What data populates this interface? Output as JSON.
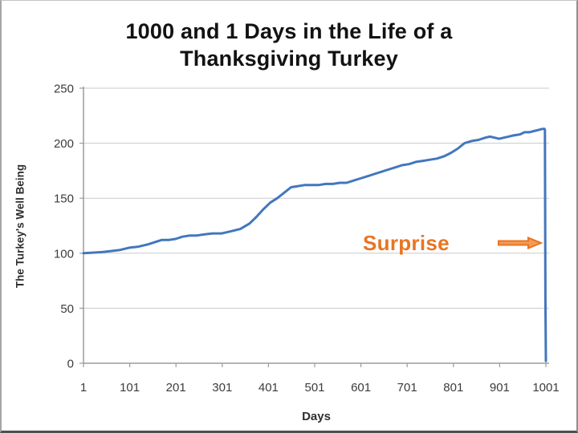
{
  "title": {
    "text": "1000 and 1 Days in the Life of a Thanksgiving Turkey",
    "lines": [
      "1000 and 1 Days in the Life of a",
      "Thanksgiving Turkey"
    ]
  },
  "chart_data": {
    "type": "line",
    "title": "1000 and 1 Days in the Life of a Thanksgiving Turkey",
    "xlabel": "Days",
    "ylabel": "The Turkey's Well Being",
    "xlim": [
      1,
      1001
    ],
    "ylim": [
      0,
      250
    ],
    "x_ticks": [
      1,
      101,
      201,
      301,
      401,
      501,
      601,
      701,
      801,
      901,
      1001
    ],
    "y_ticks": [
      0,
      50,
      100,
      150,
      200,
      250
    ],
    "grid": "horizontal",
    "legend": "none",
    "series": [
      {
        "name": "The Turkey's Well Being",
        "color": "#4277BD",
        "points": [
          [
            1,
            100
          ],
          [
            20,
            100.5
          ],
          [
            40,
            101
          ],
          [
            60,
            102
          ],
          [
            80,
            103
          ],
          [
            100,
            105
          ],
          [
            120,
            106
          ],
          [
            140,
            108
          ],
          [
            155,
            110
          ],
          [
            170,
            112
          ],
          [
            185,
            112
          ],
          [
            200,
            113
          ],
          [
            215,
            115
          ],
          [
            230,
            116
          ],
          [
            245,
            116
          ],
          [
            260,
            117
          ],
          [
            280,
            118
          ],
          [
            300,
            118
          ],
          [
            320,
            120
          ],
          [
            340,
            122
          ],
          [
            360,
            127
          ],
          [
            375,
            133
          ],
          [
            390,
            140
          ],
          [
            405,
            146
          ],
          [
            420,
            150
          ],
          [
            435,
            155
          ],
          [
            450,
            160
          ],
          [
            465,
            161
          ],
          [
            480,
            162
          ],
          [
            495,
            162
          ],
          [
            510,
            162
          ],
          [
            525,
            163
          ],
          [
            540,
            163
          ],
          [
            555,
            164
          ],
          [
            570,
            164
          ],
          [
            585,
            166
          ],
          [
            600,
            168
          ],
          [
            615,
            170
          ],
          [
            630,
            172
          ],
          [
            645,
            174
          ],
          [
            660,
            176
          ],
          [
            675,
            178
          ],
          [
            690,
            180
          ],
          [
            705,
            181
          ],
          [
            720,
            183
          ],
          [
            735,
            184
          ],
          [
            750,
            185
          ],
          [
            765,
            186
          ],
          [
            780,
            188
          ],
          [
            795,
            191
          ],
          [
            810,
            195
          ],
          [
            825,
            200
          ],
          [
            840,
            202
          ],
          [
            855,
            203
          ],
          [
            870,
            205
          ],
          [
            880,
            206
          ],
          [
            890,
            205
          ],
          [
            900,
            204
          ],
          [
            910,
            205
          ],
          [
            920,
            206
          ],
          [
            930,
            207
          ],
          [
            945,
            208
          ],
          [
            955,
            210
          ],
          [
            965,
            210
          ],
          [
            975,
            211
          ],
          [
            985,
            212
          ],
          [
            993,
            213
          ],
          [
            998,
            213
          ],
          [
            999,
            212
          ],
          [
            1000,
            60
          ],
          [
            1001,
            2
          ]
        ]
      }
    ],
    "annotation": {
      "text": "Surprise",
      "color": "#E87522",
      "arrow": "right-arrow",
      "x": 713,
      "y": 109
    }
  },
  "colors": {
    "line": "#4277BD",
    "accent_orange": "#E87522",
    "arrow_fill": "#F49A54",
    "grid": "#C9C9C9",
    "axis": "#9B9B9B",
    "tick_text": "#3C3C3C",
    "title_text": "#121212"
  }
}
